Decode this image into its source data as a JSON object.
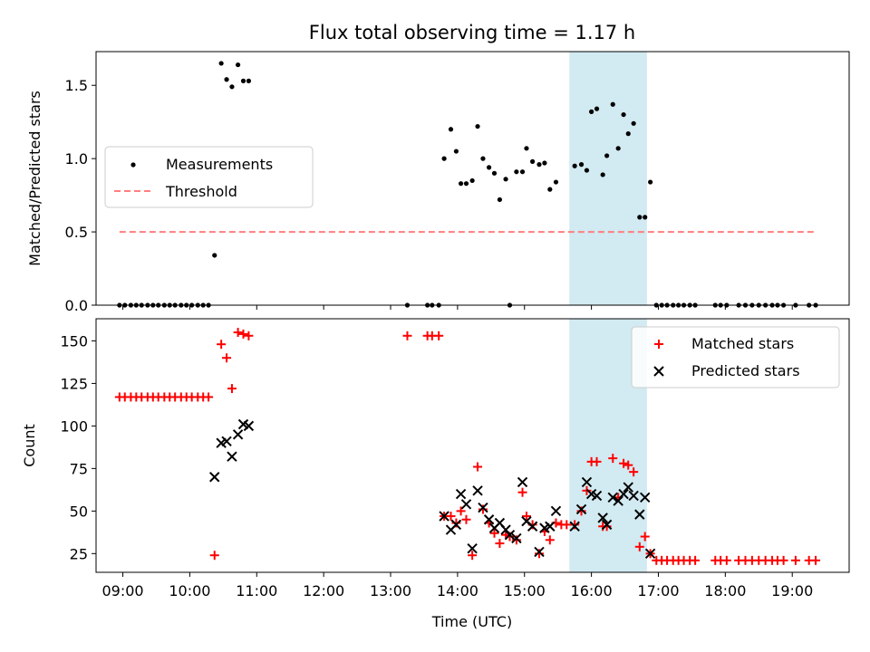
{
  "figure": {
    "title": "Flux total observing time = 1.17 h",
    "xlabel": "Time (UTC)",
    "xticks": [
      "09:00",
      "10:00",
      "11:00",
      "12:00",
      "13:00",
      "14:00",
      "15:00",
      "16:00",
      "17:00",
      "18:00",
      "19:00"
    ],
    "highlight_span": [
      15.67,
      16.83
    ],
    "highlight_color": "#add8e6",
    "xlim": [
      8.6,
      19.85
    ]
  },
  "chart_data": [
    {
      "type": "scatter",
      "ylabel": "Matched/Predicted stars",
      "ylim": [
        0,
        1.73
      ],
      "yticks": [
        "0.0",
        "0.5",
        "1.0",
        "1.5"
      ],
      "ytick_values": [
        0,
        0.5,
        1.0,
        1.5
      ],
      "legend": {
        "placement": "center-left",
        "measurements": "Measurements",
        "threshold": "Threshold"
      },
      "colors": {
        "measurements": "#000000",
        "threshold": "#ff7f7f"
      },
      "threshold": {
        "value": 0.5,
        "x_range": [
          8.95,
          19.35
        ]
      },
      "series": [
        {
          "name": "Measurements",
          "points": [
            [
              8.95,
              0
            ],
            [
              9.03,
              0
            ],
            [
              9.12,
              0
            ],
            [
              9.2,
              0
            ],
            [
              9.28,
              0
            ],
            [
              9.37,
              0
            ],
            [
              9.45,
              0
            ],
            [
              9.53,
              0
            ],
            [
              9.62,
              0
            ],
            [
              9.7,
              0
            ],
            [
              9.78,
              0
            ],
            [
              9.87,
              0
            ],
            [
              9.95,
              0
            ],
            [
              10.03,
              0
            ],
            [
              10.12,
              0
            ],
            [
              10.2,
              0
            ],
            [
              10.28,
              0
            ],
            [
              10.37,
              0.34
            ],
            [
              10.47,
              1.65
            ],
            [
              10.55,
              1.54
            ],
            [
              10.63,
              1.49
            ],
            [
              10.72,
              1.64
            ],
            [
              10.8,
              1.53
            ],
            [
              10.88,
              1.53
            ],
            [
              13.25,
              0
            ],
            [
              13.55,
              0
            ],
            [
              13.62,
              0
            ],
            [
              13.72,
              0
            ],
            [
              13.8,
              1.0
            ],
            [
              13.9,
              1.2
            ],
            [
              13.98,
              1.05
            ],
            [
              14.05,
              0.83
            ],
            [
              14.13,
              0.83
            ],
            [
              14.22,
              0.85
            ],
            [
              14.3,
              1.22
            ],
            [
              14.38,
              1.0
            ],
            [
              14.47,
              0.94
            ],
            [
              14.55,
              0.9
            ],
            [
              14.63,
              0.72
            ],
            [
              14.72,
              0.86
            ],
            [
              14.78,
              0
            ],
            [
              14.88,
              0.91
            ],
            [
              14.97,
              0.91
            ],
            [
              15.03,
              1.07
            ],
            [
              15.12,
              0.98
            ],
            [
              15.22,
              0.96
            ],
            [
              15.3,
              0.97
            ],
            [
              15.38,
              0.79
            ],
            [
              15.47,
              0.84
            ],
            [
              15.75,
              0.95
            ],
            [
              15.85,
              0.96
            ],
            [
              15.93,
              0.92
            ],
            [
              16.0,
              1.32
            ],
            [
              16.08,
              1.34
            ],
            [
              16.17,
              0.89
            ],
            [
              16.23,
              1.02
            ],
            [
              16.32,
              1.37
            ],
            [
              16.4,
              1.07
            ],
            [
              16.48,
              1.3
            ],
            [
              16.55,
              1.17
            ],
            [
              16.63,
              1.24
            ],
            [
              16.72,
              0.6
            ],
            [
              16.8,
              0.6
            ],
            [
              16.88,
              0.84
            ],
            [
              16.97,
              0
            ],
            [
              17.05,
              0
            ],
            [
              17.13,
              0
            ],
            [
              17.22,
              0
            ],
            [
              17.3,
              0
            ],
            [
              17.38,
              0
            ],
            [
              17.47,
              0
            ],
            [
              17.55,
              0
            ],
            [
              17.85,
              0
            ],
            [
              17.93,
              0
            ],
            [
              18.02,
              0
            ],
            [
              18.2,
              0
            ],
            [
              18.3,
              0
            ],
            [
              18.4,
              0
            ],
            [
              18.5,
              0
            ],
            [
              18.6,
              0
            ],
            [
              18.7,
              0
            ],
            [
              18.78,
              0
            ],
            [
              18.87,
              0
            ],
            [
              19.05,
              0
            ],
            [
              19.25,
              0
            ],
            [
              19.35,
              0
            ]
          ]
        }
      ]
    },
    {
      "type": "scatter",
      "ylabel": "Count",
      "ylim": [
        14,
        163
      ],
      "yticks": [
        "25",
        "50",
        "75",
        "100",
        "125",
        "150"
      ],
      "ytick_values": [
        25,
        50,
        75,
        100,
        125,
        150
      ],
      "legend": {
        "placement": "top-right",
        "matched": "Matched stars",
        "predicted": "Predicted stars"
      },
      "colors": {
        "matched": "#ff0000",
        "predicted": "#000000"
      },
      "series": [
        {
          "name": "Matched stars",
          "points": [
            [
              8.95,
              117
            ],
            [
              9.03,
              117
            ],
            [
              9.12,
              117
            ],
            [
              9.2,
              117
            ],
            [
              9.28,
              117
            ],
            [
              9.37,
              117
            ],
            [
              9.45,
              117
            ],
            [
              9.53,
              117
            ],
            [
              9.62,
              117
            ],
            [
              9.7,
              117
            ],
            [
              9.78,
              117
            ],
            [
              9.87,
              117
            ],
            [
              9.95,
              117
            ],
            [
              10.03,
              117
            ],
            [
              10.12,
              117
            ],
            [
              10.2,
              117
            ],
            [
              10.28,
              117
            ],
            [
              10.37,
              24
            ],
            [
              10.47,
              148
            ],
            [
              10.55,
              140
            ],
            [
              10.63,
              122
            ],
            [
              10.72,
              155
            ],
            [
              10.8,
              154
            ],
            [
              10.88,
              153
            ],
            [
              13.25,
              153
            ],
            [
              13.55,
              153
            ],
            [
              13.62,
              153
            ],
            [
              13.72,
              153
            ],
            [
              13.8,
              47
            ],
            [
              13.9,
              47
            ],
            [
              13.98,
              43
            ],
            [
              14.05,
              50
            ],
            [
              14.13,
              45
            ],
            [
              14.22,
              24
            ],
            [
              14.3,
              76
            ],
            [
              14.38,
              51
            ],
            [
              14.47,
              43
            ],
            [
              14.55,
              37
            ],
            [
              14.63,
              31
            ],
            [
              14.72,
              36
            ],
            [
              14.78,
              35
            ],
            [
              14.88,
              33
            ],
            [
              14.97,
              61
            ],
            [
              15.03,
              47
            ],
            [
              15.12,
              42
            ],
            [
              15.22,
              25
            ],
            [
              15.3,
              38
            ],
            [
              15.38,
              33
            ],
            [
              15.47,
              43
            ],
            [
              15.55,
              42
            ],
            [
              15.63,
              42
            ],
            [
              15.75,
              42
            ],
            [
              15.85,
              50
            ],
            [
              15.93,
              62
            ],
            [
              16.0,
              79
            ],
            [
              16.08,
              79
            ],
            [
              16.17,
              41
            ],
            [
              16.23,
              41
            ],
            [
              16.32,
              81
            ],
            [
              16.4,
              58
            ],
            [
              16.48,
              78
            ],
            [
              16.55,
              77
            ],
            [
              16.63,
              73
            ],
            [
              16.72,
              29
            ],
            [
              16.8,
              35
            ],
            [
              16.88,
              25
            ],
            [
              16.97,
              21
            ],
            [
              17.05,
              21
            ],
            [
              17.13,
              21
            ],
            [
              17.22,
              21
            ],
            [
              17.3,
              21
            ],
            [
              17.38,
              21
            ],
            [
              17.47,
              21
            ],
            [
              17.55,
              21
            ],
            [
              17.85,
              21
            ],
            [
              17.93,
              21
            ],
            [
              18.02,
              21
            ],
            [
              18.2,
              21
            ],
            [
              18.3,
              21
            ],
            [
              18.4,
              21
            ],
            [
              18.5,
              21
            ],
            [
              18.6,
              21
            ],
            [
              18.7,
              21
            ],
            [
              18.78,
              21
            ],
            [
              18.87,
              21
            ],
            [
              19.05,
              21
            ],
            [
              19.25,
              21
            ],
            [
              19.35,
              21
            ]
          ]
        },
        {
          "name": "Predicted stars",
          "points": [
            [
              10.37,
              70
            ],
            [
              10.47,
              90
            ],
            [
              10.55,
              91
            ],
            [
              10.63,
              82
            ],
            [
              10.72,
              95
            ],
            [
              10.8,
              101
            ],
            [
              10.88,
              100
            ],
            [
              13.8,
              47
            ],
            [
              13.9,
              39
            ],
            [
              13.98,
              42
            ],
            [
              14.05,
              60
            ],
            [
              14.13,
              54
            ],
            [
              14.22,
              28
            ],
            [
              14.3,
              62
            ],
            [
              14.38,
              52
            ],
            [
              14.47,
              45
            ],
            [
              14.55,
              40
            ],
            [
              14.63,
              43
            ],
            [
              14.72,
              39
            ],
            [
              14.78,
              36
            ],
            [
              14.88,
              34
            ],
            [
              14.97,
              67
            ],
            [
              15.03,
              44
            ],
            [
              15.12,
              41
            ],
            [
              15.22,
              26
            ],
            [
              15.3,
              40
            ],
            [
              15.38,
              41
            ],
            [
              15.47,
              50
            ],
            [
              15.75,
              41
            ],
            [
              15.85,
              51
            ],
            [
              15.93,
              67
            ],
            [
              16.0,
              60
            ],
            [
              16.08,
              59
            ],
            [
              16.17,
              46
            ],
            [
              16.23,
              42
            ],
            [
              16.32,
              58
            ],
            [
              16.4,
              56
            ],
            [
              16.48,
              60
            ],
            [
              16.55,
              64
            ],
            [
              16.63,
              59
            ],
            [
              16.72,
              48
            ],
            [
              16.8,
              58
            ],
            [
              16.88,
              25
            ]
          ]
        }
      ]
    }
  ]
}
